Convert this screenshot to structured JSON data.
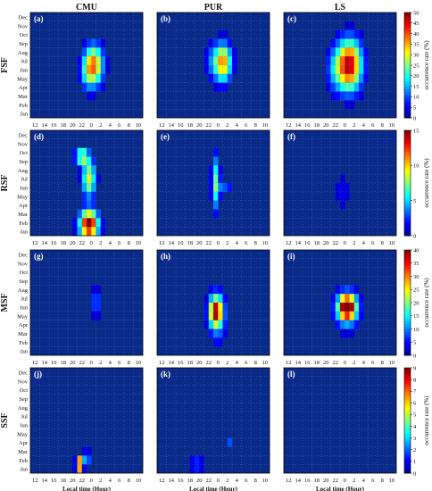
{
  "chart_data": {
    "type": "heatmap",
    "columns": [
      "CMU",
      "PUR",
      "LS"
    ],
    "rows": [
      "FSF",
      "RSF",
      "MSF",
      "SSF"
    ],
    "panel_labels": [
      [
        "(a)",
        "(b)",
        "(c)"
      ],
      [
        "(d)",
        "(e)",
        "(f)"
      ],
      [
        "(g)",
        "(h)",
        "(i)"
      ],
      [
        "(j)",
        "(k)",
        "(l)"
      ]
    ],
    "months": [
      "Dec",
      "Nov",
      "Oct",
      "Sep",
      "Aug",
      "Jul",
      "Jun",
      "May",
      "Apr",
      "Mar",
      "Feb",
      "Jan"
    ],
    "x_ticks": [
      "12",
      "14",
      "16",
      "18",
      "20",
      "22",
      "0",
      "2",
      "4",
      "6",
      "8",
      "10"
    ],
    "xlabel": "Local time (Hour)",
    "colorbar_label": "occurrence rate (%)",
    "colorbar_ticks": [
      [
        "0",
        "5",
        "10",
        "15",
        "20",
        "25",
        "30",
        "35",
        "40",
        "45",
        "50"
      ],
      [
        "0",
        "5",
        "10",
        "15"
      ],
      [
        "0",
        "5",
        "10",
        "15",
        "20",
        "25",
        "30",
        "35",
        "40"
      ],
      [
        "0",
        "1",
        "2",
        "3",
        "4",
        "5",
        "6",
        "7",
        "8",
        "9"
      ]
    ],
    "colorbar_max": [
      50,
      15,
      40,
      9
    ],
    "colormap": [
      "#00008f",
      "#0000ff",
      "#0080ff",
      "#00ffff",
      "#80ff80",
      "#ffff00",
      "#ff8000",
      "#ff0000",
      "#800000"
    ],
    "background_color": "#0a2a8a",
    "grid": "dotted",
    "blobs": [
      [
        [
          {
            "h": 1,
            "m": 6.5,
            "sx": 1.4,
            "sy": 1.6,
            "a": 38
          },
          {
            "h": -0.5,
            "m": 5.5,
            "sx": 1.0,
            "sy": 1.3,
            "a": 10
          }
        ],
        [
          {
            "h": 1.5,
            "m": 6.8,
            "sx": 1.3,
            "sy": 1.5,
            "a": 38
          },
          {
            "h": -1,
            "m": 7,
            "sx": 1.0,
            "sy": 1.5,
            "a": 8
          }
        ],
        [
          {
            "h": 1.5,
            "m": 6.5,
            "sx": 1.8,
            "sy": 2.0,
            "a": 48
          },
          {
            "h": -1.5,
            "m": 6,
            "sx": 1.4,
            "sy": 1.8,
            "a": 12
          }
        ]
      ],
      [
        [
          {
            "h": 0,
            "m": 1.8,
            "sx": 1.4,
            "sy": 1.1,
            "a": 16
          },
          {
            "h": 0,
            "m": 7,
            "sx": 1.0,
            "sy": 1.5,
            "a": 9
          },
          {
            "h": -1.5,
            "m": 9.5,
            "sx": 1.0,
            "sy": 0.6,
            "a": 9
          }
        ],
        [
          {
            "h": 0,
            "m": 6.5,
            "sx": 0.6,
            "sy": 2.2,
            "a": 7
          },
          {
            "h": 2,
            "m": 6,
            "sx": 1.2,
            "sy": 0.6,
            "a": 3
          }
        ],
        [
          {
            "h": 0,
            "m": 5.5,
            "sx": 1.5,
            "sy": 2.0,
            "a": 1.5
          }
        ]
      ],
      [
        [
          {
            "h": 1.5,
            "m": 6.5,
            "sx": 0.8,
            "sy": 1.1,
            "a": 9
          }
        ],
        [
          {
            "h": 0,
            "m": 5.5,
            "sx": 1.0,
            "sy": 1.2,
            "a": 34
          },
          {
            "h": 0.5,
            "m": 4.5,
            "sx": 1.3,
            "sy": 2.4,
            "a": 8
          }
        ],
        [
          {
            "h": 1,
            "m": 6,
            "sx": 1.3,
            "sy": 1.0,
            "a": 40
          },
          {
            "h": 1,
            "m": 5.5,
            "sx": 2.0,
            "sy": 1.6,
            "a": 10
          }
        ]
      ],
      [
        [
          {
            "h": -2,
            "m": 1.5,
            "sx": 0.5,
            "sy": 0.6,
            "a": 9
          },
          {
            "h": -0.5,
            "m": 2.3,
            "sx": 0.6,
            "sy": 0.5,
            "a": 3
          }
        ],
        [
          {
            "h": -4,
            "m": 1.5,
            "sx": 1.0,
            "sy": 0.4,
            "a": 3
          },
          {
            "h": 3,
            "m": 4.3,
            "sx": 0.3,
            "sy": 0.3,
            "a": 3
          }
        ],
        []
      ]
    ]
  }
}
